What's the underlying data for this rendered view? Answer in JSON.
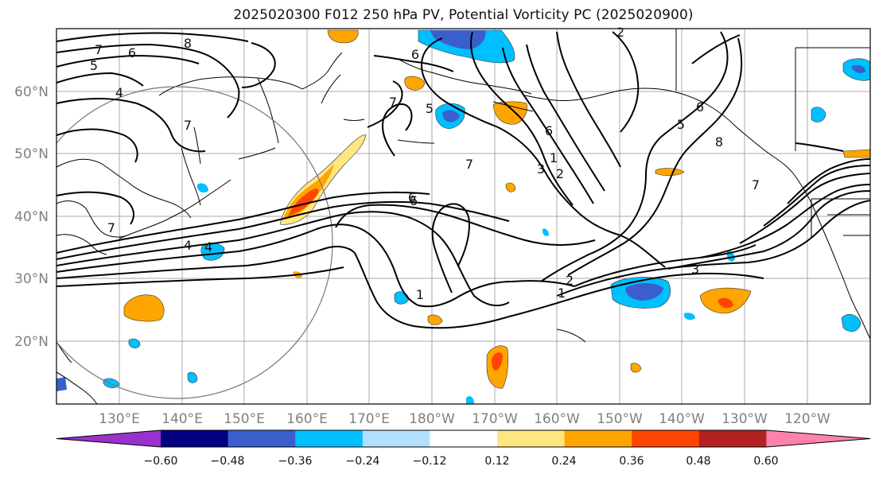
{
  "title": "2025020300 F012 250 hPa PV, Potential Vorticity PC (2025020900)",
  "lat_labels": [
    "60°N",
    "50°N",
    "40°N",
    "30°N",
    "20°N"
  ],
  "lon_labels": [
    "130°E",
    "140°E",
    "150°E",
    "160°E",
    "170°E",
    "180°W",
    "170°W",
    "160°W",
    "150°W",
    "140°W",
    "130°W",
    "120°W"
  ],
  "colorbar": {
    "ticks": [
      "−0.60",
      "−0.48",
      "−0.36",
      "−0.24",
      "−0.12",
      "0.12",
      "0.24",
      "0.36",
      "0.48",
      "0.60"
    ],
    "colors": [
      "#9932CC",
      "#000080",
      "#3A5FCD",
      "#00BFFF",
      "#B2DFFF",
      "#FFFFFF",
      "#FFE680",
      "#FFA500",
      "#FF4500",
      "#B22222",
      "#FF82AB"
    ]
  },
  "contour_labels": [
    "7",
    "8",
    "6",
    "5",
    "4",
    "6",
    "7",
    "5",
    "7",
    "7",
    "7",
    "6",
    "5",
    "8",
    "1",
    "2",
    "3",
    "6",
    "4",
    "1",
    "2",
    "1",
    "3",
    "7",
    "2",
    "6",
    "4",
    "6"
  ]
}
